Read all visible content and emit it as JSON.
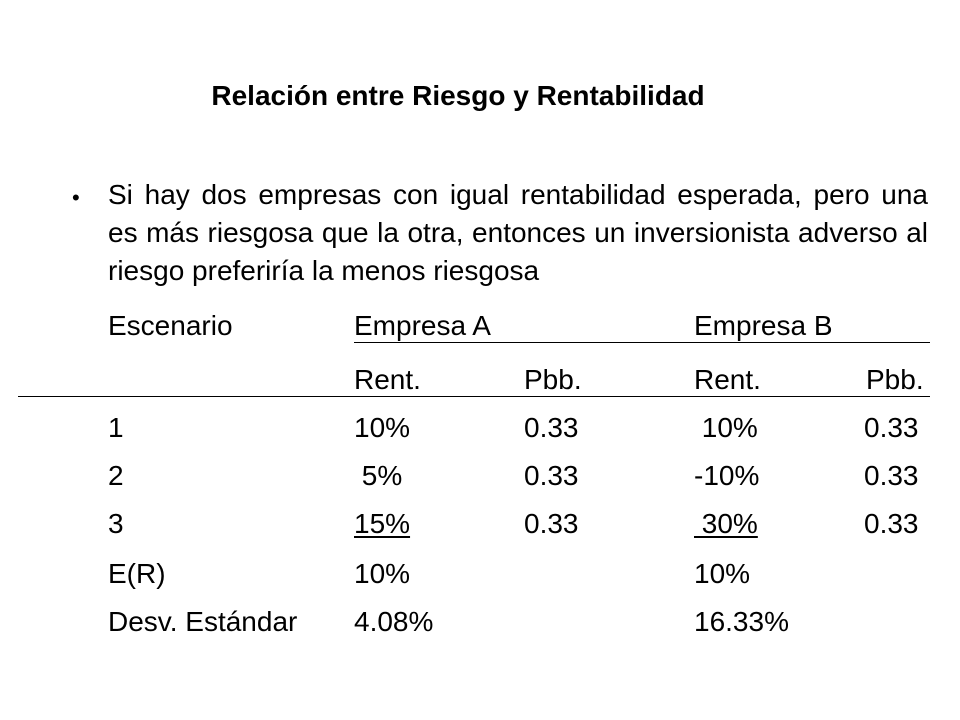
{
  "title": "Relación entre Riesgo y Rentabilidad",
  "bullet": {
    "icon": "bullet-dot-icon",
    "text": "Si hay dos empresas con igual rentabilidad esperada, pero una es más riesgosa que la otra, entonces un inversionista adverso al riesgo preferiría la menos riesgosa"
  },
  "table": {
    "header": {
      "scenario": "Escenario",
      "company_a": "Empresa A",
      "company_b": "Empresa B"
    },
    "subheader": {
      "a_rent": "Rent.",
      "a_pbb": "Pbb.",
      "b_rent": "Rent.",
      "b_pbb": "Pbb."
    },
    "rows": [
      {
        "scenario": "1",
        "a_rent": "10%",
        "a_pbb": "0.33",
        "b_rent": " 10%",
        "b_pbb": "0.33"
      },
      {
        "scenario": "2",
        "a_rent": " 5%",
        "a_pbb": "0.33",
        "b_rent": "-10%",
        "b_pbb": "0.33"
      },
      {
        "scenario": "3",
        "a_rent": "15%",
        "a_pbb": "0.33",
        "b_rent": " 30%",
        "b_pbb": "0.33"
      }
    ],
    "expected": {
      "label": "E(R)",
      "a": "10%",
      "b": "10%"
    },
    "stdev": {
      "label": "Desv. Estándar",
      "a": "4.08%",
      "b": "16.33%"
    }
  }
}
